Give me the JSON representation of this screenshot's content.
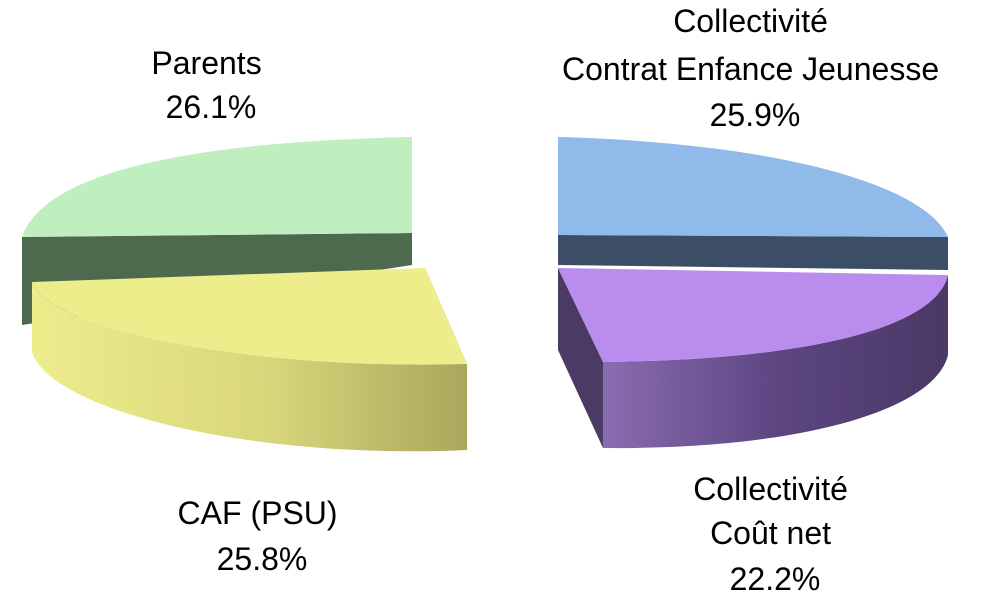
{
  "chart_data": {
    "type": "pie",
    "style": "3d-exploded",
    "slices": [
      {
        "label_lines": [
          "Collectivité",
          "Contrat Enfance Jeunesse"
        ],
        "percent_label": "25.9%",
        "value": 25.9,
        "color": "#8fbaea",
        "side_color": "#3b4e65"
      },
      {
        "label_lines": [
          "Collectivité",
          "Coût net"
        ],
        "percent_label": "22.2%",
        "value": 22.2,
        "color": "#b98cee",
        "side_color": "#4b3a63"
      },
      {
        "label_lines": [
          "CAF (PSU)"
        ],
        "percent_label": "25.8%",
        "value": 25.8,
        "color": "#eeed8c",
        "side_color": "#aaa860"
      },
      {
        "label_lines": [
          "Parents"
        ],
        "percent_label": "26.1%",
        "value": 26.1,
        "color": "#bfeebf",
        "side_color": "#4e6a4e"
      }
    ],
    "legend": "none"
  }
}
